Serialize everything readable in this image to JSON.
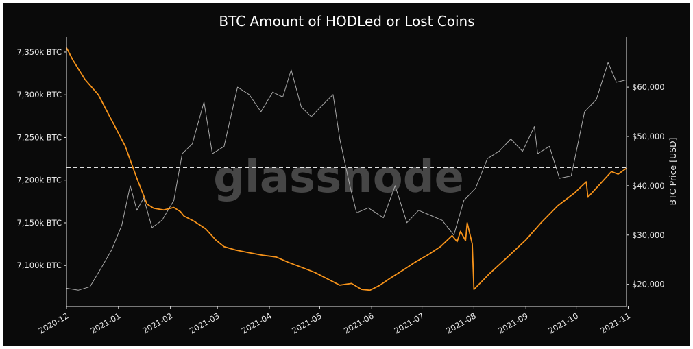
{
  "chart_data": {
    "type": "line",
    "title": "BTC Amount of HODLed or Lost Coins",
    "watermark": "glassnode",
    "xlabel": "",
    "ylabel_left": "",
    "ylabel_right": "BTC Price [USD]",
    "background": "#0a0a0a",
    "grid": false,
    "x_ticks": [
      "2020-12",
      "2021-01",
      "2021-02",
      "2021-03",
      "2021-04",
      "2021-05",
      "2021-06",
      "2021-07",
      "2021-08",
      "2021-09",
      "2021-10",
      "2021-11"
    ],
    "y_left_ticks": [
      "7,100k BTC",
      "7,150k BTC",
      "7,200k BTC",
      "7,250k BTC",
      "7,300k BTC",
      "7,350k BTC"
    ],
    "y_left_tick_values": [
      7100,
      7150,
      7200,
      7250,
      7300,
      7350
    ],
    "y_right_ticks": [
      "$20,000",
      "$30,000",
      "$40,000",
      "$50,000",
      "$60,000"
    ],
    "y_right_tick_values": [
      20000,
      30000,
      40000,
      50000,
      60000
    ],
    "ylim_left": [
      7052,
      7358
    ],
    "ylim_right": [
      15500,
      68500
    ],
    "xlim": [
      "2020-12-01",
      "2021-10-31"
    ],
    "reference_line": {
      "axis": "left",
      "value": 7215,
      "style": "dashed",
      "color": "#ffffff"
    },
    "series": [
      {
        "axis": "left",
        "color": "#f7931a",
        "x": [
          "2020-12-01",
          "2020-12-05",
          "2020-12-12",
          "2020-12-20",
          "2020-12-28",
          "2021-01-05",
          "2021-01-12",
          "2021-01-18",
          "2021-01-22",
          "2021-01-28",
          "2021-02-03",
          "2021-02-07",
          "2021-02-09",
          "2021-02-15",
          "2021-02-22",
          "2021-02-28",
          "2021-03-05",
          "2021-03-12",
          "2021-03-20",
          "2021-03-28",
          "2021-04-05",
          "2021-04-12",
          "2021-04-20",
          "2021-04-28",
          "2021-05-06",
          "2021-05-13",
          "2021-05-20",
          "2021-05-26",
          "2021-05-31",
          "2021-06-06",
          "2021-06-12",
          "2021-06-20",
          "2021-06-27",
          "2021-07-05",
          "2021-07-12",
          "2021-07-19",
          "2021-07-22",
          "2021-07-24",
          "2021-07-27",
          "2021-07-28",
          "2021-07-31",
          "2021-08-01",
          "2021-08-10",
          "2021-08-20",
          "2021-09-01",
          "2021-09-10",
          "2021-09-20",
          "2021-09-30",
          "2021-10-07",
          "2021-10-08",
          "2021-10-15",
          "2021-10-22",
          "2021-10-26",
          "2021-10-31"
        ],
        "values": [
          7355,
          7340,
          7318,
          7300,
          7270,
          7240,
          7202,
          7172,
          7167,
          7165,
          7168,
          7163,
          7158,
          7152,
          7143,
          7130,
          7122,
          7118,
          7115,
          7112,
          7110,
          7104,
          7098,
          7092,
          7084,
          7077,
          7079,
          7072,
          7071,
          7077,
          7085,
          7095,
          7104,
          7113,
          7122,
          7135,
          7128,
          7140,
          7129,
          7150,
          7125,
          7072,
          7090,
          7108,
          7130,
          7150,
          7170,
          7185,
          7198,
          7180,
          7195,
          7210,
          7207,
          7214
        ]
      },
      {
        "axis": "right",
        "name": "BTC Price",
        "color": "#a9a9a9",
        "x": [
          "2020-12-01",
          "2020-12-08",
          "2020-12-15",
          "2020-12-22",
          "2020-12-28",
          "2021-01-03",
          "2021-01-08",
          "2021-01-12",
          "2021-01-16",
          "2021-01-21",
          "2021-01-27",
          "2021-02-03",
          "2021-02-08",
          "2021-02-14",
          "2021-02-21",
          "2021-02-26",
          "2021-03-05",
          "2021-03-13",
          "2021-03-20",
          "2021-03-27",
          "2021-04-03",
          "2021-04-09",
          "2021-04-14",
          "2021-04-20",
          "2021-04-26",
          "2021-05-03",
          "2021-05-09",
          "2021-05-13",
          "2021-05-19",
          "2021-05-23",
          "2021-05-30",
          "2021-06-08",
          "2021-06-15",
          "2021-06-22",
          "2021-06-29",
          "2021-07-06",
          "2021-07-13",
          "2021-07-20",
          "2021-07-26",
          "2021-08-02",
          "2021-08-09",
          "2021-08-16",
          "2021-08-23",
          "2021-08-30",
          "2021-09-06",
          "2021-09-08",
          "2021-09-15",
          "2021-09-21",
          "2021-09-28",
          "2021-10-06",
          "2021-10-13",
          "2021-10-20",
          "2021-10-25",
          "2021-10-31"
        ],
        "values": [
          19200,
          18800,
          19500,
          23500,
          27000,
          32000,
          40000,
          35000,
          37500,
          31500,
          33000,
          37000,
          46500,
          48500,
          57000,
          46500,
          48000,
          60000,
          58500,
          55000,
          59000,
          58000,
          63500,
          56000,
          54000,
          56500,
          58500,
          49500,
          40000,
          34500,
          35500,
          33500,
          40000,
          32500,
          35000,
          34000,
          33000,
          30000,
          37000,
          39500,
          45500,
          47000,
          49500,
          47000,
          52000,
          46500,
          48000,
          41500,
          42000,
          55000,
          57500,
          65000,
          61000,
          61500
        ]
      }
    ]
  }
}
